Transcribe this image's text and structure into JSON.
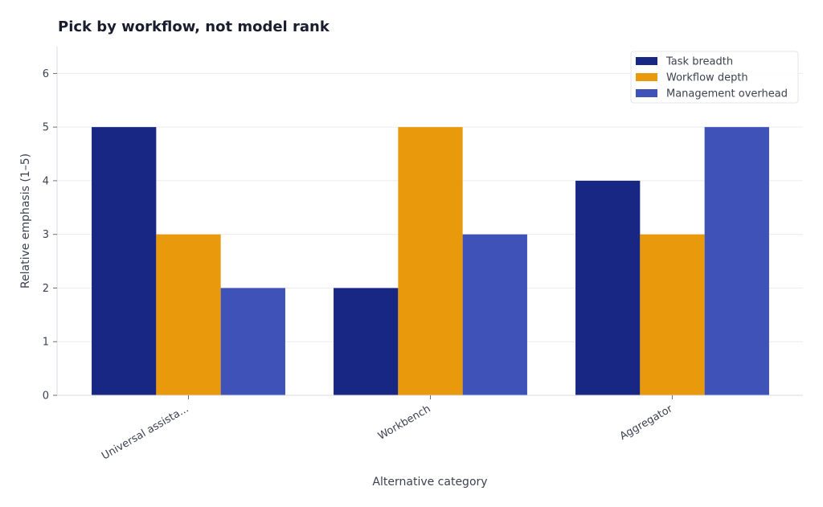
{
  "chart_data": {
    "type": "bar",
    "title": "Pick by workflow, not model rank",
    "xlabel": "Alternative category",
    "ylabel": "Relative emphasis (1–5)",
    "categories": [
      "Universal assista...",
      "Workbench",
      "Aggregator"
    ],
    "series": [
      {
        "name": "Task breadth",
        "values": [
          5,
          2,
          4
        ],
        "color": "#172783"
      },
      {
        "name": "Workflow depth",
        "values": [
          3,
          5,
          3
        ],
        "color": "#e99a0c"
      },
      {
        "name": "Management overhead",
        "values": [
          2,
          3,
          5
        ],
        "color": "#3f52b8"
      }
    ],
    "ylim": [
      0,
      6.5
    ],
    "yticks": [
      0,
      1,
      2,
      3,
      4,
      5,
      6
    ],
    "grid": true,
    "legend_position": "top-right"
  }
}
